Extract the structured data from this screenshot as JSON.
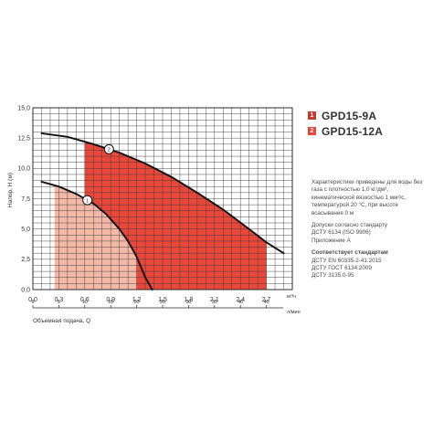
{
  "chart_data": {
    "type": "line",
    "title": "",
    "ylabel": "Напор, Н (м)",
    "xlabel": "Объемная подача, Q",
    "x_unit_top": "м³/ч",
    "x_unit_bottom": "л/мин",
    "xlim": [
      0,
      3.0
    ],
    "ylim": [
      0,
      15.0
    ],
    "x_ticks": [
      "0,0",
      "0,3",
      "0,6",
      "0,9",
      "1,2",
      "1,5",
      "1,8",
      "2,1",
      "2,4",
      "2,7"
    ],
    "x_tick_values": [
      0,
      0.3,
      0.6,
      0.9,
      1.2,
      1.5,
      1.8,
      2.1,
      2.4,
      2.7
    ],
    "x_ticks_lmin": [
      "0",
      "5",
      "10",
      "15",
      "20",
      "25",
      "30",
      "35",
      "40",
      "45"
    ],
    "x_ticks_lmin_values": [
      0,
      5,
      10,
      15,
      20,
      25,
      30,
      35,
      40,
      45
    ],
    "y_ticks": [
      "0,0",
      "2,5",
      "5,0",
      "7,5",
      "10,0",
      "12,5",
      "15,0"
    ],
    "y_tick_values": [
      0,
      2.5,
      5,
      7.5,
      10,
      12.5,
      15
    ],
    "grid": true,
    "series": [
      {
        "name": "GPD15-9A",
        "marker": "1",
        "color": "#f4b9a6",
        "zones": [
          {
            "from": 0.25,
            "to": 1.2,
            "color": "#f4b9a6"
          },
          {
            "from": 1.2,
            "to": 1.32,
            "color": "#e8473a"
          }
        ],
        "curve": [
          [
            0.1,
            8.9
          ],
          [
            0.3,
            8.5
          ],
          [
            0.5,
            7.9
          ],
          [
            0.7,
            7.1
          ],
          [
            0.85,
            6.2
          ],
          [
            1.0,
            5.0
          ],
          [
            1.1,
            4.0
          ],
          [
            1.2,
            2.7
          ],
          [
            1.3,
            1.0
          ],
          [
            1.38,
            0.0
          ]
        ]
      },
      {
        "name": "GPD15-12A",
        "marker": "2",
        "color": "#e8473a",
        "zones": [
          {
            "from": 0.6,
            "to": 2.7,
            "color": "#e8473a"
          }
        ],
        "curve": [
          [
            0.1,
            12.9
          ],
          [
            0.4,
            12.6
          ],
          [
            0.7,
            12.0
          ],
          [
            1.0,
            11.3
          ],
          [
            1.3,
            10.4
          ],
          [
            1.6,
            9.3
          ],
          [
            1.9,
            8.0
          ],
          [
            2.2,
            6.6
          ],
          [
            2.5,
            5.0
          ],
          [
            2.7,
            3.9
          ],
          [
            2.9,
            3.0
          ]
        ]
      }
    ]
  },
  "legend": [
    {
      "num": "1",
      "name": "GPD15-9A",
      "color": "#c8392e"
    },
    {
      "num": "2",
      "name": "GPD15-12A",
      "color": "#e8473a"
    }
  ],
  "notes": {
    "para1": "Характеристики приведены для воды без газа с плотностью 1,0 кг/дм³, кинематической вязкостью 1 мм²/с, температурой 20 °С, при высоте всасывания 0 м",
    "para2_line1": "Допуски согласно стандарту",
    "para2_line2": "ДСТУ 6134 (ISO 9906)",
    "para2_line3": "Приложение А",
    "standards_title": "Соответствует стандартам",
    "standards": [
      "ДСТУ EN 60335-2-41:2015",
      "ДСТУ ГОСТ 6134:2009",
      "ДСТУ 3135.0-95"
    ]
  }
}
